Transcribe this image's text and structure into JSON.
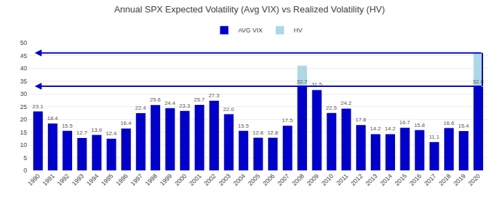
{
  "chart_data": {
    "type": "bar",
    "title": "Annual SPX Expected Volatility (Avg VIX) vs Realized Volatility (HV)",
    "categories": [
      "1990",
      "1991",
      "1992",
      "1993",
      "1994",
      "1995",
      "1996",
      "1997",
      "1998",
      "1999",
      "2000",
      "2001",
      "2002",
      "2003",
      "2004",
      "2005",
      "2006",
      "2007",
      "2008",
      "2009",
      "2010",
      "2011",
      "2012",
      "2013",
      "2014",
      "2015",
      "2016",
      "2017",
      "2018",
      "2019",
      "2020"
    ],
    "series": [
      {
        "name": "AVG VIX",
        "color": "#0000cc",
        "data_labels": true,
        "values": [
          23.1,
          18.4,
          15.5,
          12.7,
          13.9,
          12.4,
          16.4,
          22.4,
          25.6,
          24.4,
          23.3,
          25.7,
          27.3,
          22.0,
          15.5,
          12.8,
          12.8,
          17.5,
          32.7,
          31.5,
          22.5,
          24.2,
          17.8,
          14.2,
          14.2,
          16.7,
          15.8,
          11.1,
          16.6,
          15.4,
          32.8
        ],
        "value_labels": [
          "23.1",
          "18.4",
          "15.5",
          "12.7",
          "13.9",
          "12.4",
          "16.4",
          "22.4",
          "25.6",
          "24.4",
          "23.3",
          "25.7",
          "27.3",
          "22.0",
          "15.5",
          "12.8",
          "12.8",
          "17.5",
          "32.7",
          "31.5",
          "22.5",
          "24.2",
          "17.8",
          "14.2",
          "14.2",
          "16.7",
          "15.8",
          "11.1",
          "16.6",
          "15.4",
          "32.8"
        ]
      },
      {
        "name": "HV",
        "color": "#add8e6",
        "values": [
          null,
          null,
          null,
          null,
          null,
          null,
          null,
          null,
          null,
          null,
          null,
          null,
          null,
          null,
          null,
          null,
          null,
          null,
          41.0,
          null,
          null,
          null,
          null,
          null,
          null,
          null,
          null,
          null,
          null,
          null,
          46.0
        ]
      }
    ],
    "ylim": [
      0,
      50
    ],
    "yticks": [
      0,
      5,
      10,
      15,
      20,
      25,
      30,
      35,
      40,
      45,
      50
    ],
    "grid": true,
    "legend": "top",
    "arrows": [
      {
        "y": 46.0,
        "start": "2020",
        "end": "1990",
        "color": "#0000cc"
      },
      {
        "y": 33.0,
        "start": "2020",
        "end": "1990",
        "color": "#0000cc"
      }
    ]
  }
}
